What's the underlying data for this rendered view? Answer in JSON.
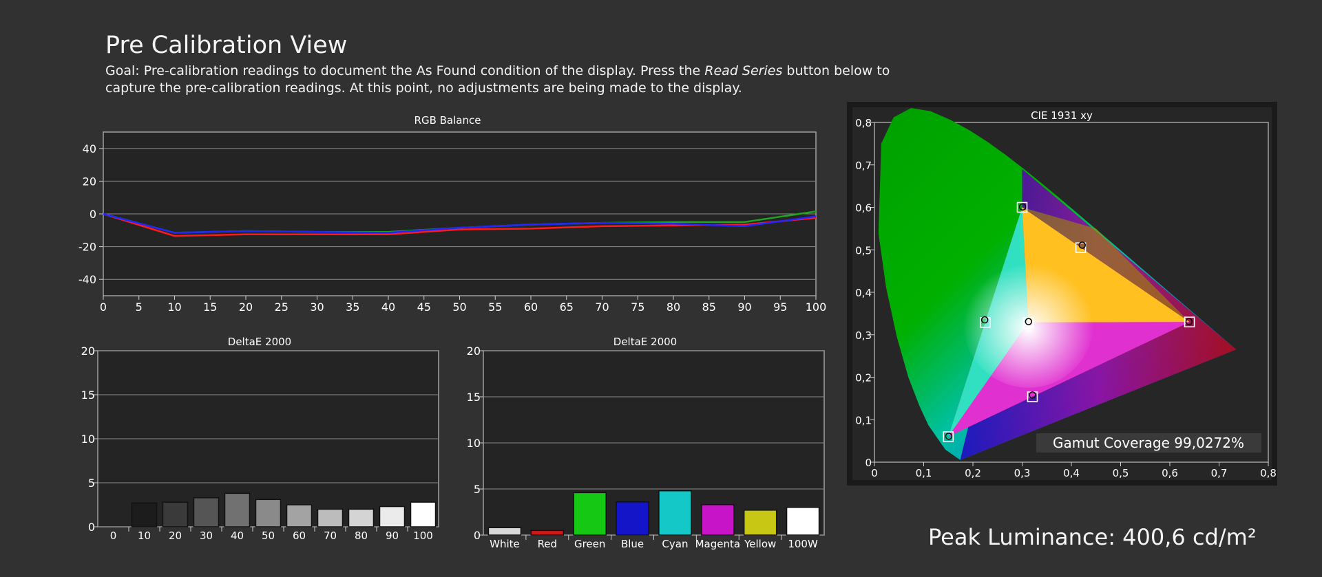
{
  "page": {
    "title": "Pre Calibration View",
    "goal_prefix": "Goal: Pre-calibration readings to document the As Found condition of the display. Press the ",
    "goal_emphasis": "Read Series",
    "goal_suffix": " button below to capture the pre-calibration readings. At this point, no adjustments are being made to the display.",
    "peak_luminance": "Peak Luminance: 400,6 cd/m²"
  },
  "colors": {
    "background": "#313131",
    "plot_bg": "#242424",
    "grid": "#8a8a8a",
    "red": "#ff1a1a",
    "green": "#1fa51f",
    "blue": "#2424ff"
  },
  "chart_data": [
    {
      "id": "rgb-balance",
      "type": "line",
      "title": "RGB Balance",
      "x": [
        0,
        10,
        20,
        30,
        40,
        50,
        60,
        70,
        80,
        90,
        100
      ],
      "xticks": [
        "0",
        "5",
        "10",
        "15",
        "20",
        "25",
        "30",
        "35",
        "40",
        "45",
        "50",
        "55",
        "60",
        "65",
        "70",
        "75",
        "80",
        "85",
        "90",
        "95",
        "100"
      ],
      "xlim": [
        0,
        100
      ],
      "ylim": [
        -50,
        50
      ],
      "yticks": [
        "40",
        "20",
        "0",
        "-20",
        "-40"
      ],
      "grid": true,
      "series": [
        {
          "color": "red",
          "values": [
            0,
            -13.5,
            -12.5,
            -12.5,
            -12.5,
            -9.5,
            -9,
            -7.5,
            -7,
            -6.5,
            -2.5
          ]
        },
        {
          "color": "green",
          "values": [
            0,
            -11.5,
            -10.5,
            -11,
            -11,
            -8.5,
            -6.5,
            -5.5,
            -5,
            -5,
            1.5
          ]
        },
        {
          "color": "blue",
          "values": [
            0,
            -11.5,
            -10.5,
            -11,
            -11.5,
            -8.5,
            -6.5,
            -5.5,
            -6,
            -7.5,
            -1.5
          ]
        }
      ]
    },
    {
      "id": "deltae-grayscale",
      "type": "bar",
      "title": "DeltaE 2000",
      "categories": [
        "0",
        "10",
        "20",
        "30",
        "40",
        "50",
        "60",
        "70",
        "80",
        "90",
        "100"
      ],
      "values": [
        0,
        2.7,
        2.8,
        3.3,
        3.8,
        3.1,
        2.5,
        2.0,
        2.0,
        2.3,
        2.8
      ],
      "bar_colors": [
        "#000000",
        "#1c1c1c",
        "#3a3a3a",
        "#555555",
        "#717171",
        "#8a8a8a",
        "#a3a3a3",
        "#bcbcbc",
        "#d4d4d4",
        "#ebebeb",
        "#ffffff"
      ],
      "ylim": [
        0,
        20
      ],
      "yticks": [
        "20",
        "15",
        "10",
        "5",
        "0"
      ],
      "grid": true
    },
    {
      "id": "deltae-colors",
      "type": "bar",
      "title": "DeltaE 2000",
      "categories": [
        "White",
        "Red",
        "Green",
        "Blue",
        "Cyan",
        "Magenta",
        "Yellow",
        "100W"
      ],
      "values": [
        0.8,
        0.5,
        4.6,
        3.6,
        4.8,
        3.3,
        2.7,
        3.0
      ],
      "bar_colors": [
        "#d9d9d9",
        "#cc1a1a",
        "#14c814",
        "#1414c8",
        "#14c8c8",
        "#c814c8",
        "#c8c814",
        "#ffffff"
      ],
      "ylim": [
        0,
        20
      ],
      "yticks": [
        "20",
        "15",
        "10",
        "5",
        "0"
      ],
      "grid": true
    },
    {
      "id": "cie-1931",
      "type": "scatter",
      "title": "CIE 1931 xy",
      "xlim": [
        0,
        0.8
      ],
      "ylim": [
        0,
        0.8
      ],
      "xticks": [
        "0",
        "0,1",
        "0,2",
        "0,3",
        "0,4",
        "0,5",
        "0,6",
        "0,7",
        "0,8"
      ],
      "yticks": [
        "0,8",
        "0,7",
        "0,6",
        "0,5",
        "0,4",
        "0,3",
        "0,2",
        "0,1",
        "0"
      ],
      "targets": [
        {
          "name": "Red",
          "x": 0.64,
          "y": 0.33
        },
        {
          "name": "Green",
          "x": 0.3,
          "y": 0.6
        },
        {
          "name": "Blue",
          "x": 0.15,
          "y": 0.06
        },
        {
          "name": "Cyan",
          "x": 0.225,
          "y": 0.329
        },
        {
          "name": "Magenta",
          "x": 0.321,
          "y": 0.154
        },
        {
          "name": "Yellow",
          "x": 0.419,
          "y": 0.505
        },
        {
          "name": "White",
          "x": 0.3127,
          "y": 0.329
        }
      ],
      "measured": [
        {
          "name": "Red",
          "x": 0.639,
          "y": 0.331
        },
        {
          "name": "Green",
          "x": 0.301,
          "y": 0.601
        },
        {
          "name": "Blue",
          "x": 0.151,
          "y": 0.061
        },
        {
          "name": "Cyan",
          "x": 0.224,
          "y": 0.335
        },
        {
          "name": "Magenta",
          "x": 0.321,
          "y": 0.158
        },
        {
          "name": "Yellow",
          "x": 0.422,
          "y": 0.511
        },
        {
          "name": "White",
          "x": 0.313,
          "y": 0.331
        }
      ],
      "gamut_coverage": "Gamut Coverage 99,0272%"
    }
  ]
}
